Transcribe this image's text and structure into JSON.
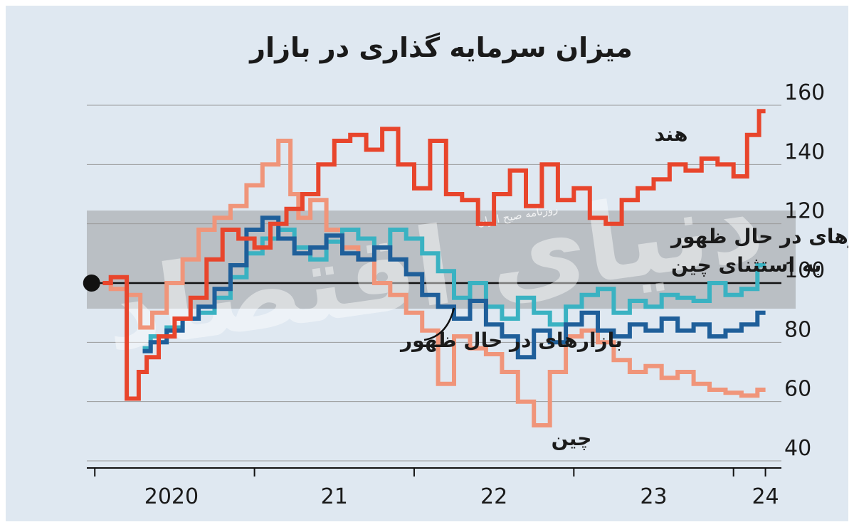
{
  "chart_data": {
    "type": "line",
    "title": "میزان سرمایه گذاری در بازار",
    "xlabel": "",
    "ylabel": "",
    "ylim": [
      40,
      160
    ],
    "yticks": [
      40,
      60,
      80,
      100,
      120,
      140,
      160
    ],
    "x_ticks": [
      "2020",
      "21",
      "22",
      "23",
      "24"
    ],
    "xlim": [
      2019.75,
      2024.1
    ],
    "grid": true,
    "reference_value": 100,
    "series": [
      {
        "name": "هند",
        "color": "#e8452c",
        "x": [
          2019.85,
          2019.95,
          2020.05,
          2020.1,
          2020.15,
          2020.25,
          2020.35,
          2020.45,
          2020.55,
          2020.65,
          2020.75,
          2020.85,
          2020.95,
          2021.05,
          2021.15,
          2021.25,
          2021.35,
          2021.45,
          2021.55,
          2021.65,
          2021.75,
          2021.85,
          2021.95,
          2022.05,
          2022.15,
          2022.25,
          2022.35,
          2022.45,
          2022.55,
          2022.65,
          2022.75,
          2022.85,
          2022.95,
          2023.05,
          2023.15,
          2023.25,
          2023.35,
          2023.45,
          2023.55,
          2023.65,
          2023.75,
          2023.85,
          2023.92,
          2024.0
        ],
        "values": [
          100,
          102,
          61,
          70,
          75,
          82,
          88,
          95,
          108,
          118,
          115,
          112,
          120,
          125,
          130,
          140,
          148,
          150,
          145,
          152,
          140,
          132,
          148,
          130,
          128,
          120,
          130,
          138,
          126,
          140,
          128,
          132,
          122,
          120,
          128,
          132,
          135,
          140,
          138,
          142,
          140,
          136,
          150,
          158
        ]
      },
      {
        "name": "بازارهای در حال ظهور به استثنای چین",
        "color": "#3ab2c2",
        "x": [
          2020.1,
          2020.2,
          2020.3,
          2020.4,
          2020.5,
          2020.6,
          2020.7,
          2020.8,
          2020.9,
          2021.0,
          2021.1,
          2021.2,
          2021.3,
          2021.4,
          2021.5,
          2021.6,
          2021.7,
          2021.8,
          2021.9,
          2022.0,
          2022.1,
          2022.2,
          2022.3,
          2022.4,
          2022.5,
          2022.6,
          2022.7,
          2022.8,
          2022.9,
          2023.0,
          2023.1,
          2023.2,
          2023.3,
          2023.4,
          2023.5,
          2023.6,
          2023.7,
          2023.8,
          2023.9,
          2024.0
        ],
        "values": [
          78,
          82,
          85,
          88,
          90,
          95,
          102,
          110,
          115,
          118,
          112,
          108,
          114,
          118,
          115,
          112,
          118,
          115,
          110,
          104,
          95,
          100,
          92,
          88,
          95,
          90,
          86,
          92,
          96,
          98,
          90,
          94,
          92,
          96,
          95,
          94,
          100,
          96,
          98,
          106
        ]
      },
      {
        "name": "بازارهای در حال ظهور",
        "color": "#1f5f9a",
        "x": [
          2020.1,
          2020.2,
          2020.3,
          2020.4,
          2020.5,
          2020.6,
          2020.7,
          2020.8,
          2020.9,
          2021.0,
          2021.1,
          2021.2,
          2021.3,
          2021.4,
          2021.5,
          2021.6,
          2021.7,
          2021.8,
          2021.9,
          2022.0,
          2022.1,
          2022.2,
          2022.3,
          2022.4,
          2022.5,
          2022.6,
          2022.7,
          2022.8,
          2022.9,
          2023.0,
          2023.1,
          2023.2,
          2023.3,
          2023.4,
          2023.5,
          2023.6,
          2023.7,
          2023.8,
          2023.9,
          2024.0
        ],
        "values": [
          77,
          80,
          84,
          88,
          92,
          98,
          106,
          118,
          122,
          115,
          110,
          112,
          116,
          110,
          108,
          112,
          108,
          103,
          96,
          92,
          88,
          94,
          86,
          82,
          75,
          84,
          80,
          86,
          90,
          84,
          82,
          86,
          84,
          88,
          84,
          86,
          82,
          84,
          86,
          90
        ]
      },
      {
        "name": "چین",
        "color": "#f0957a",
        "x": [
          2019.85,
          2019.95,
          2020.05,
          2020.12,
          2020.2,
          2020.3,
          2020.4,
          2020.5,
          2020.6,
          2020.7,
          2020.8,
          2020.9,
          2021.0,
          2021.05,
          2021.1,
          2021.2,
          2021.3,
          2021.4,
          2021.5,
          2021.6,
          2021.7,
          2021.8,
          2021.9,
          2022.0,
          2022.1,
          2022.2,
          2022.3,
          2022.4,
          2022.5,
          2022.6,
          2022.7,
          2022.8,
          2022.9,
          2023.0,
          2023.1,
          2023.2,
          2023.3,
          2023.4,
          2023.5,
          2023.6,
          2023.7,
          2023.8,
          2023.9,
          2024.0
        ],
        "values": [
          100,
          98,
          96,
          85,
          90,
          100,
          108,
          118,
          122,
          126,
          133,
          140,
          148,
          130,
          122,
          128,
          118,
          112,
          108,
          100,
          96,
          90,
          84,
          66,
          82,
          78,
          76,
          70,
          60,
          52,
          70,
          82,
          84,
          80,
          74,
          70,
          72,
          68,
          70,
          66,
          64,
          63,
          62,
          64
        ]
      }
    ]
  },
  "annotations": {
    "label_india": "هند",
    "label_em_ex_china_1": "بازارهای در حال ظهور",
    "label_em_ex_china_2": "به استثنای چین",
    "label_em": "بازارهای در حال ظهور",
    "label_china": "چین"
  },
  "watermark": {
    "logo_text": "دنیای اقتصاد",
    "small_text": "روزنامه صبح ایران"
  },
  "colors": {
    "background": "#dfe8f1",
    "band": "#8f8f8f",
    "grid": "#9a9a9a",
    "baseline": "#111111"
  }
}
